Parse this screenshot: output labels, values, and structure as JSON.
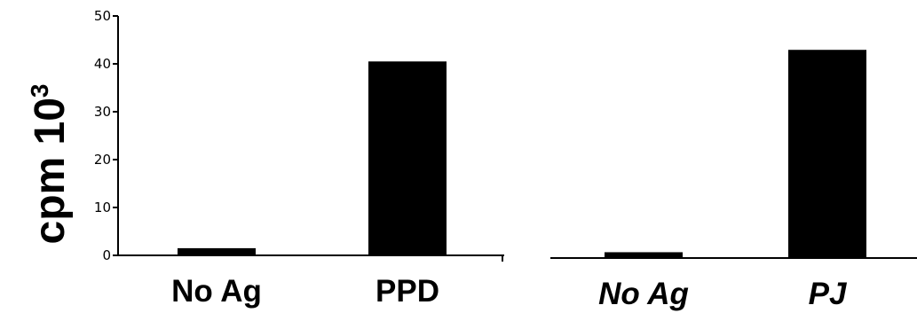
{
  "y_axis_label": "cpm 10",
  "y_axis_label_superscript": "3",
  "chart_data": [
    {
      "type": "bar",
      "categories": [
        "No Ag",
        "PPD"
      ],
      "values": [
        1.5,
        40.5
      ],
      "ylim": [
        0,
        50
      ],
      "yticks": [
        "0",
        "10",
        "20",
        "30",
        "40",
        "50"
      ],
      "bar_color": "#000000",
      "italic_labels": false
    },
    {
      "type": "bar",
      "categories": [
        "No Ag",
        "PJ"
      ],
      "values": [
        1.2,
        43.0
      ],
      "ylim": [
        0,
        50
      ],
      "yticks": [],
      "bar_color": "#000000",
      "italic_labels": true
    }
  ]
}
